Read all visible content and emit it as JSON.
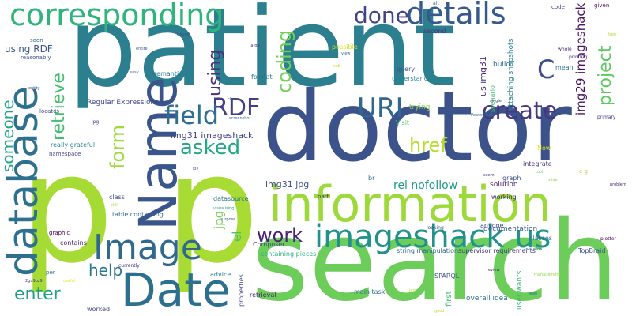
{
  "words": [
    {
      "text": "patient",
      "color": "#2c7f8e"
    },
    {
      "text": "doctor",
      "color": "#3b528b"
    },
    {
      "text": "search",
      "color": "#6ccd5a"
    },
    {
      "text": "p",
      "color": "#a6db35"
    },
    {
      "text": "p",
      "color": "#a8db34"
    },
    {
      "text": "information",
      "color": "#9dd93b"
    },
    {
      "text": "Name",
      "color": "#3a548c"
    },
    {
      "text": "database",
      "color": "#2d718e"
    },
    {
      "text": "Date",
      "color": "#2d6f8e"
    },
    {
      "text": "Image",
      "color": "#31688e"
    },
    {
      "text": "corresponding",
      "color": "#2fb47c"
    },
    {
      "text": "details",
      "color": "#375a8c"
    },
    {
      "text": "imageshack us",
      "color": "#21918c"
    },
    {
      "text": "URI",
      "color": "#31668e"
    },
    {
      "text": "RDF",
      "color": "#433e85"
    },
    {
      "text": "field",
      "color": "#2e6e8e"
    },
    {
      "text": "create",
      "color": "#453781"
    },
    {
      "text": "work",
      "color": "#482374"
    },
    {
      "text": "coding",
      "color": "#73d056"
    },
    {
      "text": "done",
      "color": "#414487"
    },
    {
      "text": "using",
      "color": "#46337f"
    },
    {
      "text": "asked",
      "color": "#22a884"
    },
    {
      "text": "form",
      "color": "#9fda3a"
    },
    {
      "text": "enter",
      "color": "#1fa187"
    },
    {
      "text": "help",
      "color": "#2a788e"
    },
    {
      "text": "href",
      "color": "#b5de2b"
    },
    {
      "text": "retrieve",
      "color": "#44bf70"
    },
    {
      "text": "someone",
      "color": "#22a785"
    },
    {
      "text": "C",
      "color": "#3d4e8a"
    },
    {
      "text": "project",
      "color": "#5ec962"
    },
    {
      "text": "img29 imageshack",
      "color": "#471365"
    },
    {
      "text": "us img31",
      "color": "#472d7b"
    },
    {
      "text": "rel nofollow",
      "color": "#1f998a"
    },
    {
      "text": "jpg",
      "color": "#74d055"
    },
    {
      "text": "el",
      "color": "#4ac16d"
    },
    {
      "text": "using RDF",
      "color": "#39568c"
    },
    {
      "text": "img31 imageshack",
      "color": "#424186"
    },
    {
      "text": "img31 jpg",
      "color": "#3e4c8a"
    },
    {
      "text": "Regular Expressions",
      "color": "#3f4889"
    },
    {
      "text": "semantic",
      "color": "#2a778e"
    },
    {
      "text": "someone",
      "color": "#22a785"
    },
    {
      "text": "query",
      "color": "#3b518b"
    },
    {
      "text": "understanding",
      "color": "#25848e"
    },
    {
      "text": "trying",
      "color": "#84d44b"
    },
    {
      "text": "Visit",
      "color": "#50c46a"
    },
    {
      "text": "scenario",
      "color": "#3fbc73"
    },
    {
      "text": "attaching snapshots",
      "color": "#27808e"
    },
    {
      "text": "build",
      "color": "#2e6e8e"
    },
    {
      "text": "mean",
      "color": "#2c728e"
    },
    {
      "text": "second",
      "color": "#453882"
    },
    {
      "text": "possible",
      "color": "#d2e21b"
    },
    {
      "text": "format",
      "color": "#2a768e"
    },
    {
      "text": "reasonably",
      "color": "#3c4f8a"
    },
    {
      "text": "soon",
      "color": "#2f6c8e"
    },
    {
      "text": "really grateful",
      "color": "#26828e"
    },
    {
      "text": "namespace",
      "color": "#414287"
    },
    {
      "text": "class",
      "color": "#3d4d8a"
    },
    {
      "text": "graphic",
      "color": "#440154"
    },
    {
      "text": "contains",
      "color": "#481f70"
    },
    {
      "text": "table containing",
      "color": "#31688e"
    },
    {
      "text": "Composer",
      "color": "#3e4a89"
    },
    {
      "text": "containing pieces",
      "color": "#2ab07f"
    },
    {
      "text": "string manipulation",
      "color": "#2f6b8e"
    },
    {
      "text": "supervisor requirements",
      "color": "#453781"
    },
    {
      "text": "documentation",
      "color": "#34608d"
    },
    {
      "text": "solution",
      "color": "#481a6c"
    },
    {
      "text": "working",
      "color": "#482475"
    },
    {
      "text": "anyone",
      "color": "#404588"
    },
    {
      "text": "graph",
      "color": "#3a548c"
    },
    {
      "text": "integrate",
      "color": "#453882"
    },
    {
      "text": "classes",
      "color": "#2b758e"
    },
    {
      "text": "TopBraid",
      "color": "#3b528b"
    },
    {
      "text": "br",
      "color": "#2f6c8e"
    },
    {
      "text": "part",
      "color": "#46307e"
    },
    {
      "text": "datasource",
      "color": "#2d708e"
    },
    {
      "text": "advice",
      "color": "#2a768e"
    },
    {
      "text": "properties",
      "color": "#3f4788"
    },
    {
      "text": "retrieval",
      "color": "#481d6f"
    },
    {
      "text": "main task",
      "color": "#2f6b8e"
    },
    {
      "text": "SPARQL",
      "color": "#3a538b"
    },
    {
      "text": "first",
      "color": "#3fbc73"
    },
    {
      "text": "user wants",
      "color": "#38b977"
    },
    {
      "text": "overall idea",
      "color": "#2d718e"
    },
    {
      "text": "worked",
      "color": "#3f4889"
    },
    {
      "text": "per",
      "color": "#2c738e"
    },
    {
      "text": "code",
      "color": "#3f4788"
    },
    {
      "text": "given",
      "color": "#481668"
    },
    {
      "text": "whole",
      "color": "#482878"
    },
    {
      "text": "printing",
      "color": "#472a7a"
    },
    {
      "text": "primary",
      "color": "#46307e"
    },
    {
      "text": "plotter",
      "color": "#440154"
    },
    {
      "text": "problem",
      "color": "#482576"
    },
    {
      "text": "Now",
      "color": "#e5e419"
    },
    {
      "text": "e g",
      "color": "#b0dd2f"
    },
    {
      "text": "tool",
      "color": "#6ece58"
    },
    {
      "text": "slide",
      "color": "#8bd646"
    },
    {
      "text": "PowerPoint",
      "color": "#2a788e"
    },
    {
      "text": "single",
      "color": "#3f4889"
    },
    {
      "text": "view",
      "color": "#33638d"
    },
    {
      "text": "large",
      "color": "#453882"
    },
    {
      "text": "tinypic",
      "color": "#3e4a89"
    },
    {
      "text": "entire",
      "color": "#3b528b"
    },
    {
      "text": "sub",
      "color": "#c2df23"
    },
    {
      "text": "clear",
      "color": "#2e6f8e"
    },
    {
      "text": "screenshot",
      "color": "#2e6d8e"
    },
    {
      "text": "easy",
      "color": "#3d4d8a"
    },
    {
      "text": "entity",
      "color": "#414287"
    },
    {
      "text": "locates",
      "color": "#3f4889"
    },
    {
      "text": "jpg",
      "color": "#3f4788"
    },
    {
      "text": "i37",
      "color": "#414487"
    },
    {
      "text": "still",
      "color": "#a2da37"
    },
    {
      "text": "visualising",
      "color": "#1f9e89"
    },
    {
      "text": "purpose",
      "color": "#3b528b"
    },
    {
      "text": "useful",
      "color": "#eae51a"
    },
    {
      "text": "currently",
      "color": "#463480"
    },
    {
      "text": "2gu9bz9",
      "color": "#46337f"
    },
    {
      "text": "look",
      "color": "#3f4889"
    },
    {
      "text": "seem",
      "color": "#433d84"
    },
    {
      "text": "inclusion",
      "color": "#2a768e"
    },
    {
      "text": "management",
      "color": "#8fd744"
    },
    {
      "text": "looking",
      "color": "#3d4e8a"
    },
    {
      "text": "review",
      "color": "#472c7a"
    },
    {
      "text": "well",
      "color": "#2e6d8e"
    },
    {
      "text": "good",
      "color": "#b8de29"
    },
    {
      "text": "jpg",
      "color": "#bddf26"
    },
    {
      "text": "tree",
      "color": "#addc30"
    },
    {
      "text": "alt",
      "color": "#2c728e"
    }
  ]
}
